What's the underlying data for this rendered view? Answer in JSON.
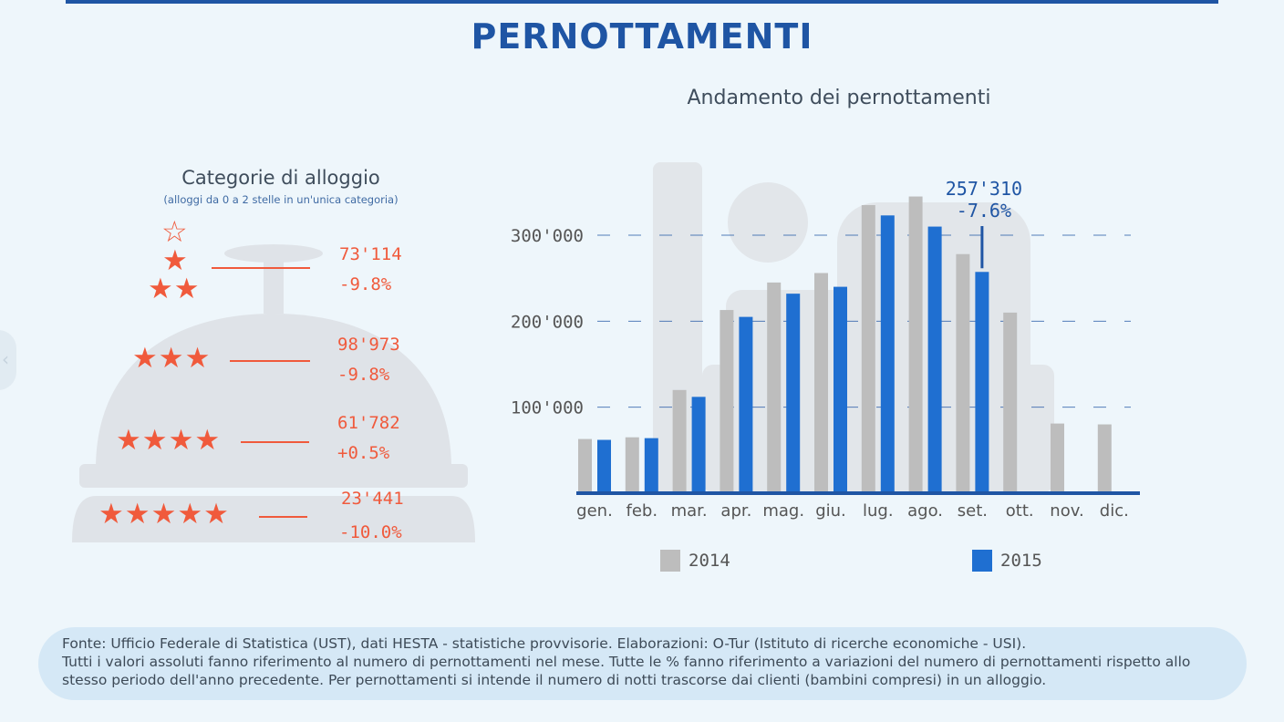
{
  "header": {
    "title": "pernottamenti"
  },
  "categories_panel": {
    "title": "Categorie di alloggio",
    "subtitle": "(alloggi da 0 a 2 stelle in un'unica categoria)",
    "rows": [
      {
        "stars_label": "★★",
        "value": "73'114",
        "change": "-9.8%"
      },
      {
        "stars_label": "★★★",
        "value": "98'973",
        "change": "-9.8%"
      },
      {
        "stars_label": "★★★★",
        "value": "61'782",
        "change": "+0.5%"
      },
      {
        "stars_label": "★★★★★",
        "value": "23'441",
        "change": "-10.0%"
      }
    ],
    "extra_stars": {
      "top_outline": "☆",
      "middle": "★"
    },
    "colors": {
      "accent": "#f05a3c",
      "bell": "#dfe3e8"
    }
  },
  "chart_data": {
    "type": "bar",
    "title": "Andamento dei pernottamenti",
    "categories": [
      "gen.",
      "feb.",
      "mar.",
      "apr.",
      "mag.",
      "giu.",
      "lug.",
      "ago.",
      "set.",
      "ott.",
      "nov.",
      "dic."
    ],
    "series": [
      {
        "name": "2014",
        "color": "#bdbdbd",
        "values": [
          63000,
          65000,
          120000,
          213000,
          245000,
          256000,
          335000,
          345000,
          278000,
          210000,
          81000,
          80000
        ]
      },
      {
        "name": "2015",
        "color": "#1f6fd1",
        "values": [
          62000,
          64000,
          112000,
          205000,
          232000,
          240000,
          323000,
          310000,
          257310,
          null,
          null,
          null
        ]
      }
    ],
    "yticks": [
      100000,
      200000,
      300000
    ],
    "ytick_labels": [
      "100'000",
      "200'000",
      "300'000"
    ],
    "ylim": [
      0,
      360000
    ],
    "grid": "dashed horizontal",
    "legend": "bottom",
    "annotation": {
      "category": "set.",
      "series": "2015",
      "value_label": "257'310",
      "change_label": "-7.6%"
    }
  },
  "footer": {
    "line1": "Fonte: Ufficio Federale di Statistica (UST), dati HESTA - statistiche provvisorie. Elaborazioni: O-Tur (Istituto di ricerche economiche - USI).",
    "line2": "Tutti i valori assoluti fanno riferimento al numero di pernottamenti nel mese. Tutte le % fanno riferimento a variazioni del numero di pernottamenti rispetto allo stesso periodo dell'anno precedente. Per pernottamenti si intende il numero di notti trascorse dai clienti (bambini compresi) in un alloggio."
  }
}
